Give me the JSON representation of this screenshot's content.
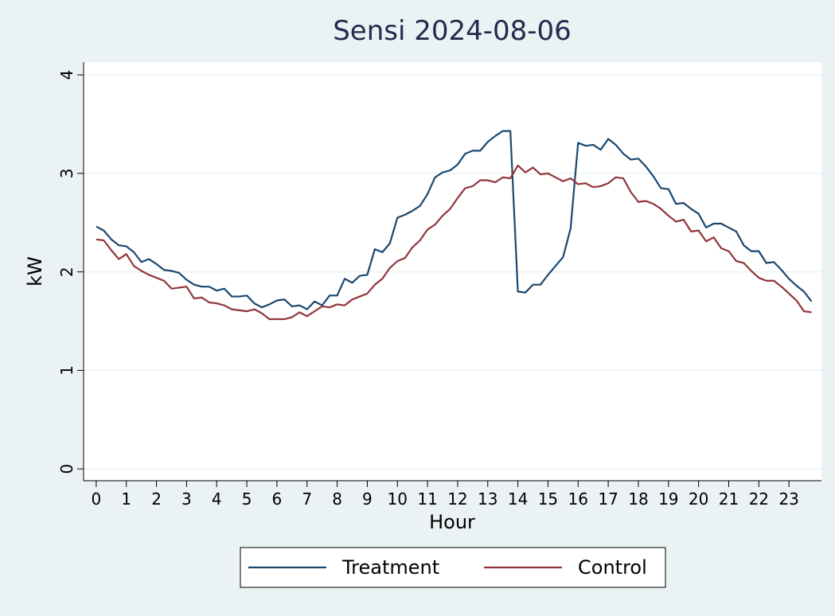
{
  "chart_data": {
    "type": "line",
    "title": "Sensi 2024-08-06",
    "x_label": "Hour",
    "y_label": "kW",
    "x": [
      0,
      0.25,
      0.5,
      0.75,
      1,
      1.25,
      1.5,
      1.75,
      2,
      2.25,
      2.5,
      2.75,
      3,
      3.25,
      3.5,
      3.75,
      4,
      4.25,
      4.5,
      4.75,
      5,
      5.25,
      5.5,
      5.75,
      6,
      6.25,
      6.5,
      6.75,
      7,
      7.25,
      7.5,
      7.75,
      8,
      8.25,
      8.5,
      8.75,
      9,
      9.25,
      9.5,
      9.75,
      10,
      10.25,
      10.5,
      10.75,
      11,
      11.25,
      11.5,
      11.75,
      12,
      12.25,
      12.5,
      12.75,
      13,
      13.25,
      13.5,
      13.75,
      14,
      14.25,
      14.5,
      14.75,
      15,
      15.25,
      15.5,
      15.75,
      16,
      16.25,
      16.5,
      16.75,
      17,
      17.25,
      17.5,
      17.75,
      18,
      18.25,
      18.5,
      18.75,
      19,
      19.25,
      19.5,
      19.75,
      20,
      20.25,
      20.5,
      20.75,
      21,
      21.25,
      21.5,
      21.75,
      22,
      22.25,
      22.5,
      22.75,
      23,
      23.25,
      23.5,
      23.75
    ],
    "series": [
      {
        "name": "Treatment",
        "color": "#1a476f",
        "values": [
          2.46,
          2.42,
          2.33,
          2.27,
          2.26,
          2.2,
          2.1,
          2.13,
          2.08,
          2.02,
          2.01,
          1.99,
          1.92,
          1.87,
          1.85,
          1.85,
          1.81,
          1.83,
          1.75,
          1.75,
          1.76,
          1.68,
          1.64,
          1.67,
          1.71,
          1.72,
          1.65,
          1.66,
          1.62,
          1.7,
          1.66,
          1.76,
          1.76,
          1.93,
          1.89,
          1.96,
          1.97,
          2.23,
          2.2,
          2.29,
          2.55,
          2.58,
          2.62,
          2.67,
          2.79,
          2.96,
          3.01,
          3.03,
          3.09,
          3.2,
          3.23,
          3.23,
          3.32,
          3.38,
          3.43,
          3.43,
          1.8,
          1.79,
          1.87,
          1.87,
          1.97,
          2.06,
          2.15,
          2.44,
          3.31,
          3.28,
          3.29,
          3.24,
          3.35,
          3.29,
          3.2,
          3.14,
          3.15,
          3.07,
          2.97,
          2.85,
          2.84,
          2.69,
          2.7,
          2.64,
          2.59,
          2.45,
          2.49,
          2.49,
          2.45,
          2.41,
          2.27,
          2.21,
          2.21,
          2.09,
          2.1,
          2.02,
          1.93,
          1.86,
          1.8,
          1.7
        ]
      },
      {
        "name": "Control",
        "color": "#90353b",
        "values": [
          2.33,
          2.32,
          2.22,
          2.13,
          2.18,
          2.06,
          2.01,
          1.97,
          1.94,
          1.91,
          1.83,
          1.84,
          1.85,
          1.73,
          1.74,
          1.69,
          1.68,
          1.66,
          1.62,
          1.61,
          1.6,
          1.62,
          1.58,
          1.52,
          1.52,
          1.52,
          1.54,
          1.59,
          1.55,
          1.6,
          1.65,
          1.64,
          1.67,
          1.66,
          1.72,
          1.75,
          1.78,
          1.87,
          1.93,
          2.04,
          2.11,
          2.14,
          2.25,
          2.32,
          2.43,
          2.48,
          2.57,
          2.64,
          2.75,
          2.85,
          2.87,
          2.93,
          2.93,
          2.91,
          2.96,
          2.95,
          3.08,
          3.01,
          3.06,
          2.99,
          3.0,
          2.96,
          2.92,
          2.95,
          2.89,
          2.9,
          2.86,
          2.87,
          2.9,
          2.96,
          2.95,
          2.81,
          2.71,
          2.72,
          2.69,
          2.64,
          2.57,
          2.51,
          2.53,
          2.41,
          2.42,
          2.31,
          2.35,
          2.24,
          2.21,
          2.11,
          2.09,
          2.01,
          1.94,
          1.91,
          1.91,
          1.85,
          1.78,
          1.71,
          1.6,
          1.59
        ]
      }
    ],
    "xlim": [
      -0.42,
      24.08
    ],
    "ylim": [
      -0.12,
      4.13
    ],
    "xticks": [
      0,
      1,
      2,
      3,
      4,
      5,
      6,
      7,
      8,
      9,
      10,
      11,
      12,
      13,
      14,
      15,
      16,
      17,
      18,
      19,
      20,
      21,
      22,
      23
    ],
    "yticks": [
      0,
      1,
      2,
      3,
      4
    ],
    "grid": true
  }
}
